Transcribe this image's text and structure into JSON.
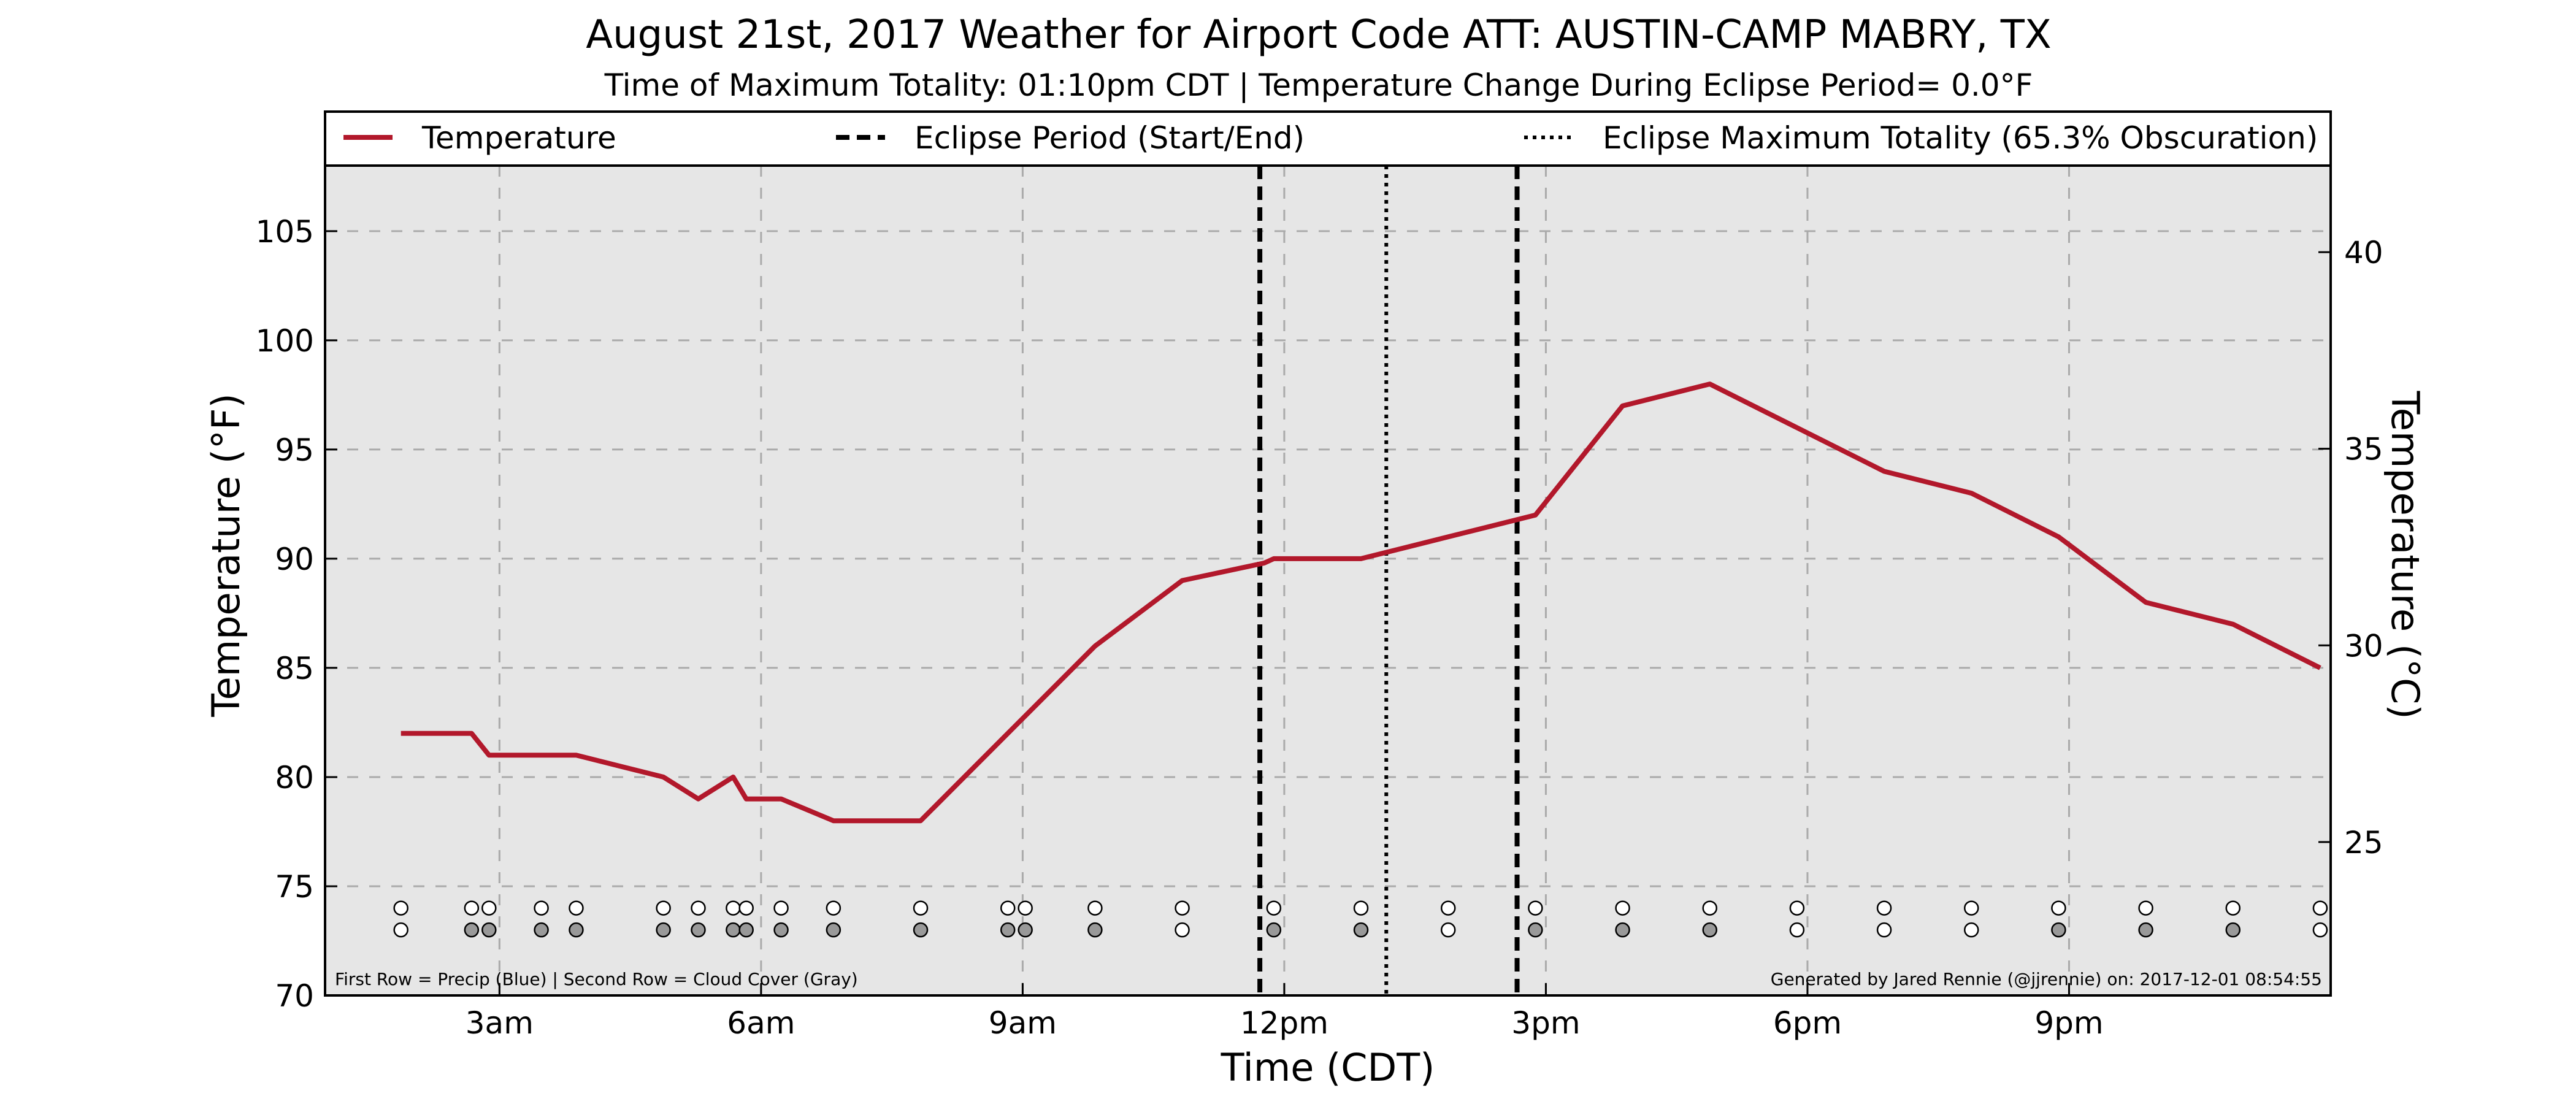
{
  "chart_data": {
    "type": "line",
    "title": "August 21st, 2017 Weather for Airport Code ATT: AUSTIN-CAMP MABRY, TX",
    "subtitle": "Time of Maximum Totality: 01:10pm CDT | Temperature Change During Eclipse Period= 0.0°F",
    "xlabel": "Time (CDT)",
    "ylabel": "Temperature (°F)",
    "y2label": "Temperature (°C)",
    "xlim": [
      1.0,
      24.0
    ],
    "ylim": [
      70,
      108
    ],
    "y2lim": [
      21.1,
      42.2
    ],
    "grid": true,
    "x_ticks": [
      {
        "x": 3,
        "label": "3am"
      },
      {
        "x": 6,
        "label": "6am"
      },
      {
        "x": 9,
        "label": "9am"
      },
      {
        "x": 12,
        "label": "12pm"
      },
      {
        "x": 15,
        "label": "3pm"
      },
      {
        "x": 18,
        "label": "6pm"
      },
      {
        "x": 21,
        "label": "9pm"
      }
    ],
    "y_ticks": [
      70,
      75,
      80,
      85,
      90,
      95,
      100,
      105
    ],
    "y2_ticks": [
      25,
      30,
      35,
      40
    ],
    "legend": {
      "placement": "top",
      "entries": [
        {
          "label": "Temperature",
          "style": "solid"
        },
        {
          "label": "Eclipse Period (Start/End)",
          "style": "dashed"
        },
        {
          "label": "Eclipse Maximum Totality (65.3% Obscuration)",
          "style": "dotted"
        }
      ]
    },
    "series": [
      {
        "name": "Temperature",
        "color": "#b2182b",
        "x": [
          1.87,
          2.68,
          2.88,
          3.48,
          3.88,
          4.88,
          5.28,
          5.68,
          5.83,
          6.23,
          6.83,
          7.83,
          8.83,
          9.83,
          10.83,
          11.77,
          11.88,
          12.88,
          13.88,
          14.88,
          15.88,
          16.88,
          17.88,
          18.88,
          19.88,
          20.88,
          21.88,
          22.88,
          23.88
        ],
        "y": [
          82,
          82,
          81,
          81,
          81,
          80,
          79,
          80,
          79,
          79,
          78,
          78,
          82,
          86,
          89,
          89.8,
          90,
          90,
          91,
          92,
          97,
          98,
          96,
          94,
          93,
          91,
          88,
          87,
          85
        ]
      }
    ],
    "vlines": [
      {
        "x": 11.72,
        "style": "dashed",
        "role": "eclipse-start"
      },
      {
        "x": 13.17,
        "style": "dotted",
        "role": "max-totality"
      },
      {
        "x": 14.67,
        "style": "dashed",
        "role": "eclipse-end"
      }
    ],
    "observation_rows": {
      "x": [
        1.87,
        2.68,
        2.88,
        3.48,
        3.88,
        4.88,
        5.28,
        5.68,
        5.83,
        6.23,
        6.83,
        7.83,
        8.83,
        9.03,
        9.83,
        10.83,
        11.88,
        12.88,
        13.88,
        14.88,
        15.88,
        16.88,
        17.88,
        18.88,
        19.88,
        20.88,
        21.88,
        22.88,
        23.88
      ],
      "precip_y": 74,
      "cloud_y": 73,
      "precip_colors": [
        "#ffffff",
        "#ffffff",
        "#ffffff",
        "#ffffff",
        "#ffffff",
        "#ffffff",
        "#ffffff",
        "#ffffff",
        "#ffffff",
        "#ffffff",
        "#ffffff",
        "#ffffff",
        "#ffffff",
        "#ffffff",
        "#ffffff",
        "#ffffff",
        "#ffffff",
        "#ffffff",
        "#ffffff",
        "#ffffff",
        "#ffffff",
        "#ffffff",
        "#ffffff",
        "#ffffff",
        "#ffffff",
        "#ffffff",
        "#ffffff",
        "#ffffff",
        "#ffffff"
      ],
      "cloud_colors": [
        "#ffffff",
        "#999999",
        "#999999",
        "#999999",
        "#999999",
        "#999999",
        "#999999",
        "#999999",
        "#999999",
        "#999999",
        "#999999",
        "#999999",
        "#999999",
        "#999999",
        "#999999",
        "#ffffff",
        "#999999",
        "#999999",
        "#ffffff",
        "#999999",
        "#999999",
        "#999999",
        "#ffffff",
        "#ffffff",
        "#ffffff",
        "#999999",
        "#999999",
        "#999999",
        "#ffffff"
      ]
    },
    "footnote_left": "First Row = Precip (Blue) | Second Row = Cloud Cover (Gray)",
    "footnote_right": "Generated by Jared Rennie (@jjrennie) on: 2017-12-01 08:54:55"
  }
}
